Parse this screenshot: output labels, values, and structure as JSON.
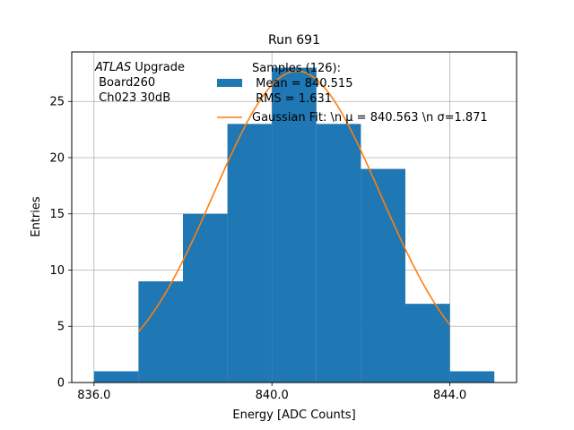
{
  "chart_data": {
    "type": "bar",
    "title": "Run 691",
    "xlabel": "Energy [ADC Counts]",
    "ylabel": "Entries",
    "xlim": [
      835.5,
      845.5
    ],
    "ylim": [
      0,
      29.4
    ],
    "xticks": [
      836.0,
      840.0,
      844.0
    ],
    "xtick_labels": [
      "836.0",
      "840.0",
      "844.0"
    ],
    "yticks": [
      0,
      5,
      10,
      15,
      20,
      25
    ],
    "grid": true,
    "bin_width": 1,
    "bin_left_edges": [
      836,
      837,
      838,
      839,
      840,
      841,
      842,
      843,
      844
    ],
    "values": [
      1,
      9,
      15,
      23,
      28,
      23,
      19,
      7,
      1
    ],
    "annotation": {
      "line1_italic": "ATLAS",
      "line1_rest": " Upgrade",
      "line2": " Board260",
      "line3": " Ch023 30dB"
    },
    "legend": {
      "position": "top-right",
      "histogram_label_lines": [
        "Samples (126):",
        " Mean = 840.515",
        " RMS = 1.631"
      ],
      "fit_label": "Gaussian Fit: \\n μ = 840.563 \\n σ=1.871"
    },
    "fit": {
      "type": "gaussian",
      "mu": 840.563,
      "sigma": 1.871,
      "amplitude": 27.7,
      "x_range": [
        837,
        844
      ]
    },
    "colors": {
      "bars": "#1f77b4",
      "fit": "#ff7f0e",
      "grid": "#b0b0b0"
    }
  }
}
